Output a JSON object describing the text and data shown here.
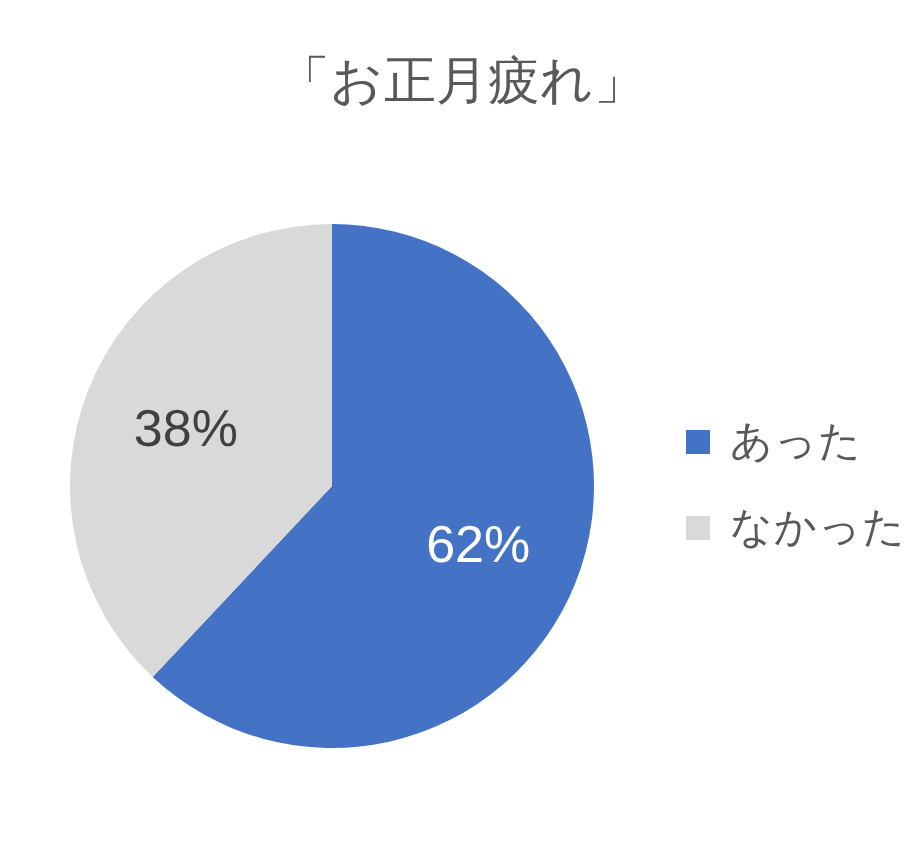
{
  "chart_data": {
    "type": "pie",
    "title": "「お正月疲れ」",
    "categories": [
      "あった",
      "なかった"
    ],
    "values": [
      62,
      38
    ],
    "value_labels": [
      "62%",
      "38%"
    ],
    "colors": [
      "#4472c4",
      "#d9d9d9"
    ],
    "legend": "right"
  }
}
